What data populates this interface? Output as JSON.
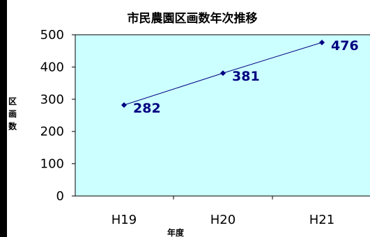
{
  "chart_data": {
    "type": "line",
    "title": "市民農園区画数年次推移",
    "xlabel": "年度",
    "ylabel": "区画数",
    "categories": [
      "H19",
      "H20",
      "H21"
    ],
    "series": [
      {
        "values": [
          282,
          381,
          476
        ]
      }
    ],
    "ylim": [
      0,
      500
    ],
    "yticks": [
      0,
      100,
      200,
      300,
      400,
      500
    ],
    "grid": false,
    "legend": "none",
    "plot_background": "#ccffff",
    "line_color": "#000080",
    "marker": "diamond"
  }
}
